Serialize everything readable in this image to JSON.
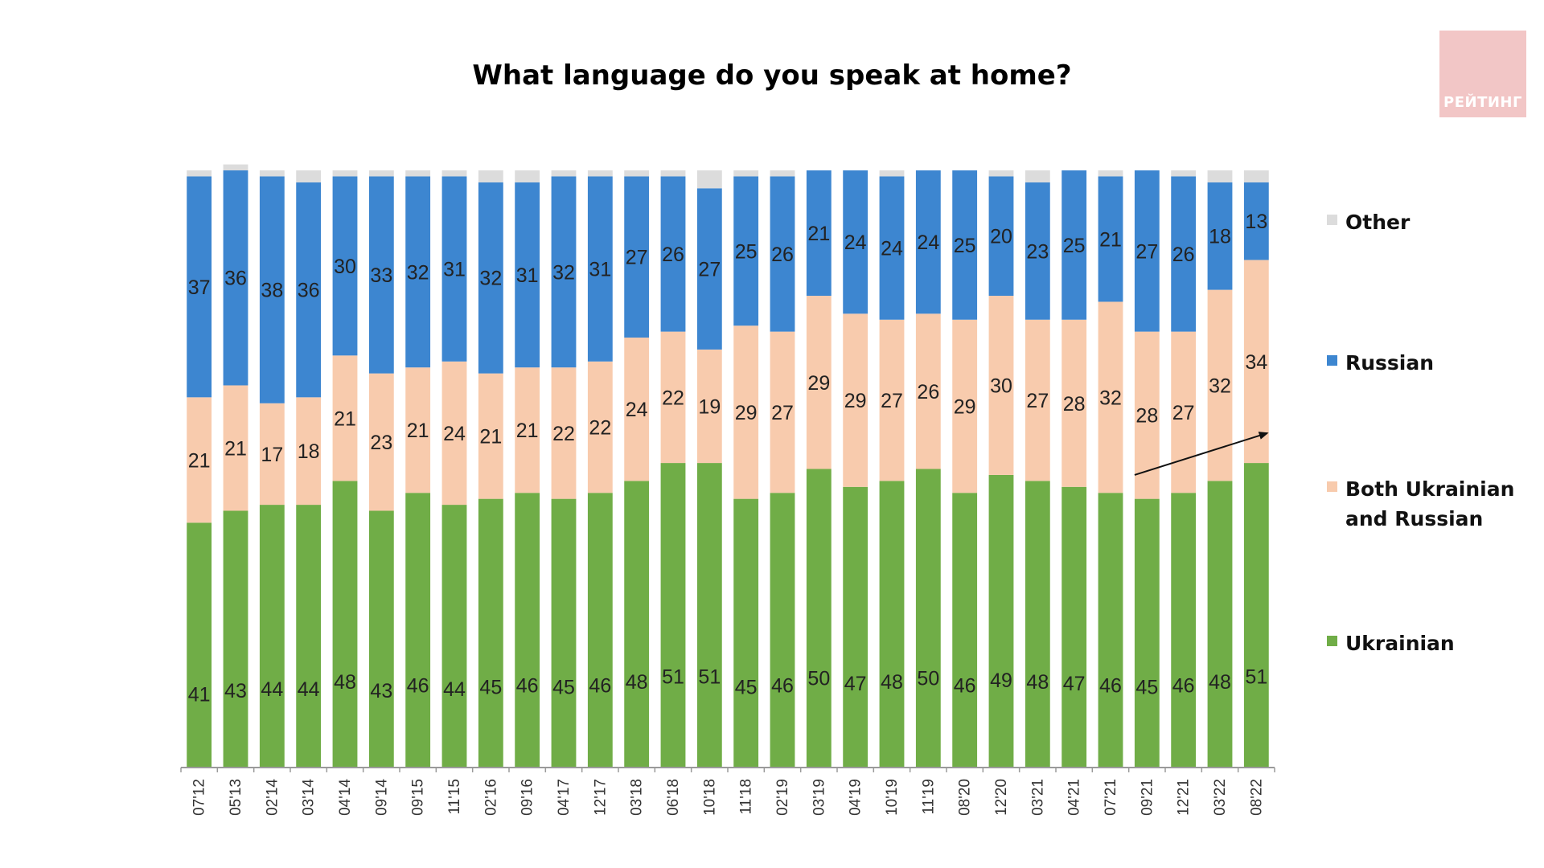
{
  "logo_text": "РЕЙТИНГ",
  "chart_data": {
    "type": "bar",
    "stacked": true,
    "title": "What language do you speak at home?",
    "xlabel": "",
    "ylabel": "",
    "ylim": [
      0,
      100
    ],
    "legend_position": "right",
    "grid": false,
    "categories": [
      "07'12",
      "05'13",
      "02'14",
      "03'14",
      "04'14",
      "09'14",
      "09'15",
      "11'15",
      "02'16",
      "09'16",
      "04'17",
      "12'17",
      "03'18",
      "06'18",
      "10'18",
      "11'18",
      "02'19",
      "03'19",
      "04'19",
      "10'19",
      "11'19",
      "08'20",
      "12'20",
      "03'21",
      "04'21",
      "07'21",
      "09'21",
      "12'21",
      "03'22",
      "08'22"
    ],
    "series": [
      {
        "name": "Ukrainian",
        "color": "#70ad47",
        "values": [
          41,
          43,
          44,
          44,
          48,
          43,
          46,
          44,
          45,
          46,
          45,
          46,
          48,
          51,
          51,
          45,
          46,
          50,
          47,
          48,
          50,
          46,
          49,
          48,
          47,
          46,
          45,
          46,
          48,
          51
        ]
      },
      {
        "name": "Both Ukrainian and Russian",
        "color": "#f8cbad",
        "values": [
          21,
          21,
          17,
          18,
          21,
          23,
          21,
          24,
          21,
          21,
          22,
          22,
          24,
          22,
          19,
          29,
          27,
          29,
          29,
          27,
          26,
          29,
          30,
          27,
          28,
          32,
          28,
          27,
          32,
          34
        ]
      },
      {
        "name": "Russian",
        "color": "#3d86d0",
        "values": [
          37,
          36,
          38,
          36,
          30,
          33,
          32,
          31,
          32,
          31,
          32,
          31,
          27,
          26,
          27,
          25,
          26,
          21,
          24,
          24,
          24,
          25,
          20,
          23,
          25,
          21,
          27,
          26,
          18,
          13
        ]
      },
      {
        "name": "Other",
        "color": "#dcdcdc",
        "values": [
          1,
          1,
          1,
          2,
          1,
          1,
          1,
          1,
          2,
          2,
          1,
          1,
          1,
          1,
          3,
          1,
          1,
          0,
          0,
          1,
          0,
          0,
          1,
          2,
          0,
          1,
          0,
          1,
          2,
          2
        ]
      }
    ],
    "legend_order": [
      "Other",
      "Russian",
      "Both Ukrainian and Russian",
      "Ukrainian"
    ],
    "annotations": [
      {
        "type": "arrow",
        "from": {
          "category": "09'21",
          "y": 49
        },
        "to": {
          "category": "08'22",
          "y": 56
        }
      }
    ]
  }
}
